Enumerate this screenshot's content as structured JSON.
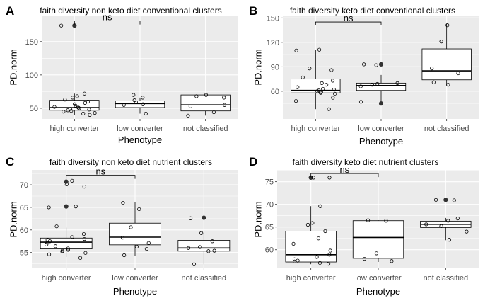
{
  "figure": {
    "background": "#ffffff",
    "panel_background": "#ebebeb",
    "grid_color": "#ffffff",
    "box_fill": "#ffffff",
    "outline_color": "#000000",
    "tick_label_color": "#4d4d4d"
  },
  "chart_data": [
    {
      "panel_letter": "A",
      "type": "box",
      "title": "faith diversity non keto diet conventional clusters",
      "xlabel": "Phenotype",
      "ylabel": "PD.norm",
      "categories": [
        "high converter",
        "low converter",
        "not classified"
      ],
      "ylim": [
        34,
        188
      ],
      "yticks": [
        50,
        100,
        150
      ],
      "grid": true,
      "significance": {
        "from": "high converter",
        "to": "low converter",
        "label": "ns",
        "y": 181
      },
      "boxes": [
        {
          "category": "high converter",
          "q1": 47,
          "median": 51,
          "q3": 62,
          "whisker_low": 40,
          "whisker_high": 72
        },
        {
          "category": "low converter",
          "q1": 51,
          "median": 57,
          "q3": 61,
          "whisker_low": 42,
          "whisker_high": 66
        },
        {
          "category": "not classified",
          "q1": 46,
          "median": 55,
          "q3": 70,
          "whisker_low": 39,
          "whisker_high": 70
        }
      ],
      "outliers": [
        {
          "category": "high converter",
          "y": 174
        }
      ],
      "points": [
        {
          "category": "high converter",
          "values": [
            174,
            72,
            68,
            66,
            63,
            60,
            58,
            56,
            54,
            53,
            52,
            51,
            50,
            49,
            48,
            47,
            46,
            45,
            43,
            42,
            40
          ]
        },
        {
          "category": "low converter",
          "values": [
            70,
            66,
            62,
            59,
            56,
            55,
            42
          ]
        },
        {
          "category": "not classified",
          "values": [
            70,
            68,
            66,
            55,
            53,
            44,
            39
          ]
        }
      ]
    },
    {
      "panel_letter": "B",
      "type": "box",
      "title": "faith diversity keto diet conventional clusters",
      "xlabel": "Phenotype",
      "ylabel": "PD.norm",
      "categories": [
        "high converter",
        "low converter",
        "not classified"
      ],
      "ylim": [
        26,
        152
      ],
      "yticks": [
        60,
        90,
        120,
        150
      ],
      "grid": true,
      "significance": {
        "from": "high converter",
        "to": "low converter",
        "label": "ns",
        "y": 145
      },
      "boxes": [
        {
          "category": "high converter",
          "q1": 58,
          "median": 61,
          "q3": 75,
          "whisker_low": 38,
          "whisker_high": 111
        },
        {
          "category": "low converter",
          "q1": 61,
          "median": 67,
          "q3": 70,
          "whisker_low": 45,
          "whisker_high": 80
        },
        {
          "category": "not classified",
          "q1": 74,
          "median": 85,
          "q3": 112,
          "whisker_low": 66,
          "whisker_high": 143
        }
      ],
      "outliers": [
        {
          "category": "low converter",
          "y": 93
        },
        {
          "category": "low converter",
          "y": 45
        }
      ],
      "points": [
        {
          "category": "high converter",
          "values": [
            111,
            110,
            88,
            86,
            77,
            73,
            70,
            68,
            65,
            63,
            62,
            61,
            60,
            59,
            58,
            57,
            52,
            48,
            38
          ]
        },
        {
          "category": "low converter",
          "values": [
            93,
            92,
            70,
            69,
            68,
            66,
            47
          ]
        },
        {
          "category": "not classified",
          "values": [
            141,
            121,
            88,
            82,
            71,
            68
          ]
        }
      ]
    },
    {
      "panel_letter": "C",
      "type": "box",
      "title": "faith diversity non keto diet nutrient clusters",
      "xlabel": "Phenotype",
      "ylabel": "PD.norm",
      "categories": [
        "high converter",
        "low converter",
        "not classified"
      ],
      "ylim": [
        51.5,
        73.3
      ],
      "yticks": [
        55,
        60,
        65,
        70
      ],
      "grid": true,
      "significance": {
        "from": "high converter",
        "to": "low converter",
        "label": "ns",
        "y": 72.1
      },
      "boxes": [
        {
          "category": "high converter",
          "q1": 55.8,
          "median": 57.3,
          "q3": 58.2,
          "whisker_low": 54.0,
          "whisker_high": 60.5
        },
        {
          "category": "low converter",
          "q1": 56.7,
          "median": 58.4,
          "q3": 61.5,
          "whisker_low": 54.2,
          "whisker_high": 66.2
        },
        {
          "category": "not classified",
          "q1": 55.3,
          "median": 56.0,
          "q3": 57.7,
          "whisker_low": 52.4,
          "whisker_high": 59.3
        }
      ],
      "outliers": [
        {
          "category": "high converter",
          "y": 70.7
        },
        {
          "category": "high converter",
          "y": 65.2
        },
        {
          "category": "not classified",
          "y": 62.7
        }
      ],
      "points": [
        {
          "category": "high converter",
          "values": [
            70.9,
            70.1,
            69.6,
            65.2,
            65.0,
            60.8,
            59.1,
            58.4,
            58.0,
            57.8,
            57.5,
            57.2,
            56.8,
            56.4,
            55.9,
            55.6,
            55.4,
            55.2,
            54.9,
            54.6,
            53.8
          ]
        },
        {
          "category": "low converter",
          "values": [
            66.0,
            64.6,
            60.6,
            58.3,
            57.1,
            56.3,
            55.8,
            54.4
          ]
        },
        {
          "category": "not classified",
          "values": [
            62.6,
            59.3,
            57.5,
            56.2,
            56.0,
            55.4,
            55.3,
            52.4
          ]
        }
      ]
    },
    {
      "panel_letter": "D",
      "type": "box",
      "title": "faith diversity keto diet nutrient clusters",
      "xlabel": "Phenotype",
      "ylabel": "PD.norm",
      "categories": [
        "high converter",
        "low converter",
        "not classified"
      ],
      "ylim": [
        55.9,
        77.6
      ],
      "yticks": [
        60,
        65,
        70,
        75
      ],
      "grid": true,
      "significance": {
        "from": "high converter",
        "to": "low converter",
        "label": "ns",
        "y": 76.8
      },
      "boxes": [
        {
          "category": "high converter",
          "q1": 57.3,
          "median": 58.9,
          "q3": 64.1,
          "whisker_low": 56.8,
          "whisker_high": 69.6
        },
        {
          "category": "low converter",
          "q1": 58.1,
          "median": 62.7,
          "q3": 66.4,
          "whisker_low": 57.3,
          "whisker_high": 66.5
        },
        {
          "category": "not classified",
          "q1": 64.9,
          "median": 65.6,
          "q3": 66.3,
          "whisker_low": 62.1,
          "whisker_high": 67.0
        }
      ],
      "outliers": [
        {
          "category": "high converter",
          "y": 75.9
        },
        {
          "category": "not classified",
          "y": 71.0
        }
      ],
      "points": [
        {
          "category": "high converter",
          "values": [
            75.9,
            75.9,
            69.6,
            65.9,
            65.5,
            64.1,
            62.5,
            61.3,
            59.8,
            58.9,
            58.4,
            57.9,
            57.6,
            57.4,
            57.1,
            56.9
          ]
        },
        {
          "category": "low converter",
          "values": [
            66.5,
            66.4,
            59.2,
            58.0,
            57.5
          ]
        },
        {
          "category": "not classified",
          "values": [
            71.0,
            70.9,
            66.9,
            66.4,
            65.6,
            65.2,
            64.0,
            62.2
          ]
        }
      ]
    }
  ]
}
